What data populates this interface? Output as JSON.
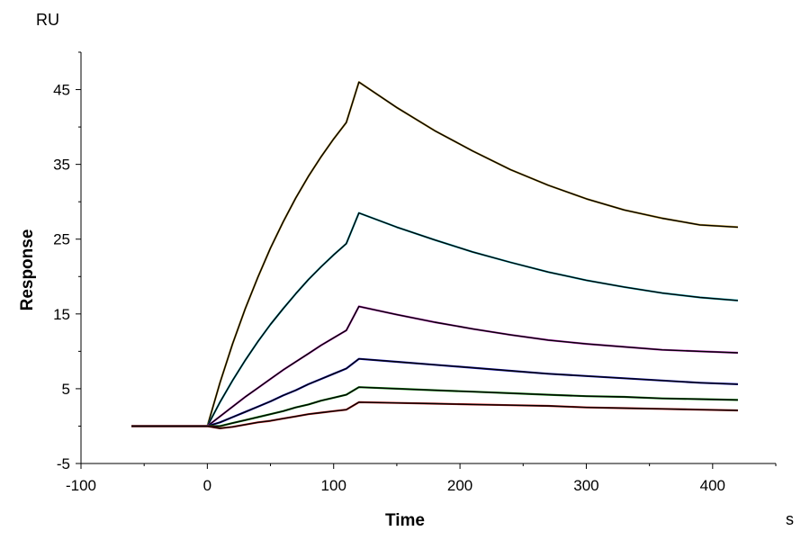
{
  "chart_data": {
    "type": "line",
    "title": "",
    "xlabel": "Time",
    "ylabel": "Response",
    "x_unit": "s",
    "y_unit": "RU",
    "xlim": [
      -100,
      450
    ],
    "ylim": [
      -5,
      50
    ],
    "x_ticks": [
      -100,
      0,
      100,
      200,
      300,
      400
    ],
    "y_ticks": [
      -5,
      5,
      15,
      25,
      35,
      45
    ],
    "grid": false,
    "legend": "none",
    "association_end": 120,
    "series": [
      {
        "color": "#c8a030",
        "fit_color": "#000000",
        "x": [
          -60,
          0,
          10,
          20,
          30,
          40,
          50,
          60,
          70,
          80,
          90,
          100,
          110,
          120,
          150,
          180,
          210,
          240,
          270,
          300,
          330,
          360,
          390,
          420
        ],
        "values": [
          0,
          0,
          5.8,
          11.0,
          15.7,
          19.9,
          23.8,
          27.3,
          30.5,
          33.4,
          36.0,
          38.4,
          40.6,
          46.0,
          42.6,
          39.5,
          36.8,
          34.3,
          32.2,
          30.4,
          28.9,
          27.8,
          26.9,
          26.6
        ]
      },
      {
        "color": "#20b8c8",
        "fit_color": "#000000",
        "x": [
          -60,
          0,
          10,
          20,
          30,
          40,
          50,
          60,
          70,
          80,
          90,
          100,
          110,
          120,
          150,
          180,
          210,
          240,
          270,
          300,
          330,
          360,
          390,
          420
        ],
        "values": [
          0,
          0,
          3.2,
          6.1,
          8.8,
          11.3,
          13.6,
          15.7,
          17.7,
          19.6,
          21.3,
          22.9,
          24.4,
          28.5,
          26.6,
          24.9,
          23.3,
          21.9,
          20.6,
          19.5,
          18.6,
          17.8,
          17.2,
          16.8
        ]
      },
      {
        "color": "#c030c0",
        "fit_color": "#000000",
        "x": [
          -60,
          0,
          10,
          20,
          30,
          40,
          50,
          60,
          70,
          80,
          90,
          100,
          110,
          120,
          150,
          180,
          210,
          240,
          270,
          300,
          330,
          360,
          390,
          420
        ],
        "values": [
          0,
          0,
          1.3,
          2.6,
          3.9,
          5.1,
          6.3,
          7.5,
          8.6,
          9.7,
          10.8,
          11.8,
          12.8,
          16.0,
          14.9,
          13.9,
          13.0,
          12.2,
          11.5,
          11.0,
          10.6,
          10.2,
          10.0,
          9.8
        ]
      },
      {
        "color": "#1a1ad0",
        "fit_color": "#000000",
        "x": [
          -60,
          0,
          10,
          20,
          30,
          40,
          50,
          60,
          70,
          80,
          90,
          100,
          110,
          120,
          150,
          180,
          210,
          240,
          270,
          300,
          330,
          360,
          390,
          420
        ],
        "values": [
          0,
          0,
          0.5,
          1.2,
          1.9,
          2.6,
          3.3,
          4.1,
          4.8,
          5.6,
          6.3,
          7.0,
          7.7,
          9.0,
          8.6,
          8.2,
          7.8,
          7.4,
          7.0,
          6.7,
          6.4,
          6.1,
          5.8,
          5.6
        ]
      },
      {
        "color": "#109010",
        "fit_color": "#000000",
        "x": [
          -60,
          0,
          10,
          20,
          30,
          40,
          50,
          60,
          70,
          80,
          90,
          100,
          110,
          120,
          150,
          180,
          210,
          240,
          270,
          300,
          330,
          360,
          390,
          420
        ],
        "values": [
          0,
          0,
          0.0,
          0.4,
          0.8,
          1.2,
          1.6,
          2.0,
          2.5,
          2.9,
          3.4,
          3.8,
          4.2,
          5.2,
          5.0,
          4.8,
          4.6,
          4.4,
          4.2,
          4.0,
          3.9,
          3.7,
          3.6,
          3.5
        ]
      },
      {
        "color": "#d02020",
        "fit_color": "#000000",
        "x": [
          -60,
          0,
          10,
          20,
          30,
          40,
          50,
          60,
          70,
          80,
          90,
          100,
          110,
          120,
          150,
          180,
          210,
          240,
          270,
          300,
          330,
          360,
          390,
          420
        ],
        "values": [
          0,
          0,
          -0.3,
          -0.1,
          0.2,
          0.5,
          0.7,
          1.0,
          1.3,
          1.6,
          1.8,
          2.0,
          2.2,
          3.2,
          3.1,
          3.0,
          2.9,
          2.8,
          2.7,
          2.5,
          2.4,
          2.3,
          2.2,
          2.1
        ]
      }
    ]
  }
}
